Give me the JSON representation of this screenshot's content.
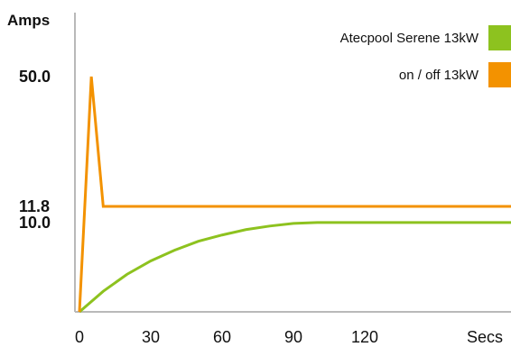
{
  "chart_data": {
    "type": "line",
    "title": "",
    "ylabel": "Amps",
    "xlabel": "Secs",
    "xlim": [
      0,
      150
    ],
    "ylim": [
      0,
      55
    ],
    "x_ticks": [
      0,
      30,
      60,
      90,
      120
    ],
    "y_ticks": [
      10.0,
      11.8,
      50.0
    ],
    "y_tick_labels": [
      "10.0",
      "11.8",
      "50.0"
    ],
    "grid": false,
    "legend_position": "top-right",
    "series": [
      {
        "name": "Atecpool Serene 13kW",
        "color": "#8dc21f",
        "x": [
          0,
          10,
          20,
          30,
          40,
          50,
          60,
          70,
          80,
          90,
          100,
          110,
          120,
          130,
          140,
          150
        ],
        "y": [
          0,
          2.3,
          4.2,
          5.7,
          6.9,
          7.9,
          8.6,
          9.2,
          9.6,
          9.9,
          10.0,
          10.0,
          10.0,
          10.0,
          10.0,
          10.0
        ]
      },
      {
        "name": "on / off 13kW",
        "color": "#f39200",
        "x": [
          0,
          5,
          10,
          150
        ],
        "y": [
          0,
          50.0,
          11.8,
          11.8
        ]
      }
    ]
  }
}
